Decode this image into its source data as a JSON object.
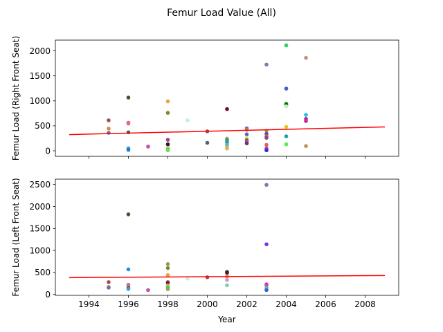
{
  "figure": {
    "title": "Femur Load Value (All)"
  },
  "chart_data": [
    {
      "type": "scatter",
      "title": "",
      "xlabel": "",
      "ylabel": "Femur Load (Right Front Seat)",
      "xlim": [
        1992.3,
        2009.7
      ],
      "ylim": [
        -110,
        2215
      ],
      "xticks": [
        1994,
        1996,
        1998,
        2000,
        2002,
        2004,
        2006,
        2008
      ],
      "xtick_labels_visible": false,
      "yticks": [
        0,
        500,
        1000,
        1500,
        2000
      ],
      "trend_line": {
        "color": "#ff0000",
        "x": [
          1993,
          2009
        ],
        "y": [
          325,
          478
        ]
      },
      "points": [
        {
          "x": 1995,
          "y": 610,
          "color": "#a0504b"
        },
        {
          "x": 1995,
          "y": 445,
          "color": "#d98a42"
        },
        {
          "x": 1995,
          "y": 360,
          "color": "#6d6da8"
        },
        {
          "x": 1996,
          "y": 1065,
          "color": "#3a5a2a"
        },
        {
          "x": 1996,
          "y": 560,
          "color": "#e05060"
        },
        {
          "x": 1996,
          "y": 545,
          "color": "#e07080"
        },
        {
          "x": 1996,
          "y": 370,
          "color": "#2f6f3f"
        },
        {
          "x": 1996,
          "y": 50,
          "color": "#3aa0e0"
        },
        {
          "x": 1996,
          "y": 20,
          "color": "#1a7ad0"
        },
        {
          "x": 1997,
          "y": 85,
          "color": "#c050b0"
        },
        {
          "x": 1998,
          "y": 990,
          "color": "#e8a040"
        },
        {
          "x": 1998,
          "y": 760,
          "color": "#7a8a2a"
        },
        {
          "x": 1998,
          "y": 220,
          "color": "#a04080"
        },
        {
          "x": 1998,
          "y": 130,
          "color": "#202020"
        },
        {
          "x": 1998,
          "y": 60,
          "color": "#c0c080"
        },
        {
          "x": 1998,
          "y": 20,
          "color": "#40d040"
        },
        {
          "x": 1998,
          "y": 10,
          "color": "#60e060"
        },
        {
          "x": 1999,
          "y": 610,
          "color": "#c0f0e0"
        },
        {
          "x": 2000,
          "y": 390,
          "color": "#b04040"
        },
        {
          "x": 2000,
          "y": 160,
          "color": "#556070"
        },
        {
          "x": 2001,
          "y": 835,
          "color": "#601030"
        },
        {
          "x": 2001,
          "y": 245,
          "color": "#a0a0a0"
        },
        {
          "x": 2001,
          "y": 215,
          "color": "#40a040"
        },
        {
          "x": 2001,
          "y": 165,
          "color": "#2090c0"
        },
        {
          "x": 2001,
          "y": 120,
          "color": "#40c0d0"
        },
        {
          "x": 2001,
          "y": 70,
          "color": "#d0a040"
        },
        {
          "x": 2001,
          "y": 45,
          "color": "#e0b060"
        },
        {
          "x": 2002,
          "y": 450,
          "color": "#8060b0"
        },
        {
          "x": 2002,
          "y": 420,
          "color": "#d07050"
        },
        {
          "x": 2002,
          "y": 330,
          "color": "#4070c0"
        },
        {
          "x": 2002,
          "y": 250,
          "color": "#e0e040"
        },
        {
          "x": 2002,
          "y": 210,
          "color": "#505050"
        },
        {
          "x": 2002,
          "y": 190,
          "color": "#a060a0"
        },
        {
          "x": 2002,
          "y": 150,
          "color": "#703070"
        },
        {
          "x": 2003,
          "y": 1725,
          "color": "#7a7ab0"
        },
        {
          "x": 2003,
          "y": 400,
          "color": "#a0a040"
        },
        {
          "x": 2003,
          "y": 340,
          "color": "#4050d0"
        },
        {
          "x": 2003,
          "y": 290,
          "color": "#e06020"
        },
        {
          "x": 2003,
          "y": 260,
          "color": "#904090"
        },
        {
          "x": 2003,
          "y": 120,
          "color": "#d07040"
        },
        {
          "x": 2003,
          "y": 50,
          "color": "#e020e0"
        },
        {
          "x": 2003,
          "y": 30,
          "color": "#a040e0"
        },
        {
          "x": 2003,
          "y": 10,
          "color": "#3030d0"
        },
        {
          "x": 2004,
          "y": 2110,
          "color": "#30d060"
        },
        {
          "x": 2004,
          "y": 1245,
          "color": "#4060d0"
        },
        {
          "x": 2004,
          "y": 940,
          "color": "#208020"
        },
        {
          "x": 2004,
          "y": 920,
          "color": "#106010"
        },
        {
          "x": 2004,
          "y": 890,
          "color": "#c0f0c0"
        },
        {
          "x": 2004,
          "y": 480,
          "color": "#f0c020"
        },
        {
          "x": 2004,
          "y": 290,
          "color": "#20a0a0"
        },
        {
          "x": 2004,
          "y": 130,
          "color": "#50f050"
        },
        {
          "x": 2005,
          "y": 1860,
          "color": "#c09080"
        },
        {
          "x": 2005,
          "y": 720,
          "color": "#20c0e0"
        },
        {
          "x": 2005,
          "y": 640,
          "color": "#a030a0"
        },
        {
          "x": 2005,
          "y": 595,
          "color": "#d020a0"
        },
        {
          "x": 2005,
          "y": 95,
          "color": "#c09060"
        }
      ]
    },
    {
      "type": "scatter",
      "title": "",
      "xlabel": "Year",
      "ylabel": "Femur Load (Left Front Seat)",
      "xlim": [
        1992.3,
        2009.7
      ],
      "ylim": [
        -20,
        2620
      ],
      "xticks": [
        1994,
        1996,
        1998,
        2000,
        2002,
        2004,
        2006,
        2008
      ],
      "xtick_labels_visible": true,
      "yticks": [
        0,
        500,
        1000,
        1500,
        2000,
        2500
      ],
      "trend_line": {
        "color": "#ff0000",
        "x": [
          1993,
          2009
        ],
        "y": [
          383,
          430
        ]
      },
      "points": [
        {
          "x": 1995,
          "y": 280,
          "color": "#a0504b"
        },
        {
          "x": 1995,
          "y": 170,
          "color": "#d98a42"
        },
        {
          "x": 1995,
          "y": 155,
          "color": "#6d6da8"
        },
        {
          "x": 1996,
          "y": 1820,
          "color": "#3a5a2a"
        },
        {
          "x": 1996,
          "y": 570,
          "color": "#1a90e0"
        },
        {
          "x": 1996,
          "y": 220,
          "color": "#e05060"
        },
        {
          "x": 1996,
          "y": 200,
          "color": "#e07080"
        },
        {
          "x": 1996,
          "y": 150,
          "color": "#2f6f3f"
        },
        {
          "x": 1996,
          "y": 125,
          "color": "#3aa0e0"
        },
        {
          "x": 1997,
          "y": 100,
          "color": "#c050b0"
        },
        {
          "x": 1998,
          "y": 690,
          "color": "#80a060"
        },
        {
          "x": 1998,
          "y": 600,
          "color": "#7a8a2a"
        },
        {
          "x": 1998,
          "y": 440,
          "color": "#e8a040"
        },
        {
          "x": 1998,
          "y": 280,
          "color": "#a04080"
        },
        {
          "x": 1998,
          "y": 260,
          "color": "#802020"
        },
        {
          "x": 1998,
          "y": 200,
          "color": "#c0c080"
        },
        {
          "x": 1998,
          "y": 160,
          "color": "#40d040"
        },
        {
          "x": 1998,
          "y": 120,
          "color": "#a0a060"
        },
        {
          "x": 1999,
          "y": 360,
          "color": "#c0f0e0"
        },
        {
          "x": 2000,
          "y": 390,
          "color": "#b04040"
        },
        {
          "x": 2001,
          "y": 510,
          "color": "#202020"
        },
        {
          "x": 2001,
          "y": 490,
          "color": "#601030"
        },
        {
          "x": 2001,
          "y": 410,
          "color": "#d0a040"
        },
        {
          "x": 2001,
          "y": 330,
          "color": "#e090d0"
        },
        {
          "x": 2001,
          "y": 210,
          "color": "#80d0b0"
        },
        {
          "x": 2003,
          "y": 2490,
          "color": "#7a7ab0"
        },
        {
          "x": 2003,
          "y": 1140,
          "color": "#8030e0"
        },
        {
          "x": 2003,
          "y": 230,
          "color": "#e020e0"
        },
        {
          "x": 2003,
          "y": 210,
          "color": "#d040c0"
        },
        {
          "x": 2003,
          "y": 150,
          "color": "#40c0a0"
        },
        {
          "x": 2003,
          "y": 120,
          "color": "#a0c060"
        },
        {
          "x": 2003,
          "y": 100,
          "color": "#3060e0"
        }
      ]
    }
  ]
}
